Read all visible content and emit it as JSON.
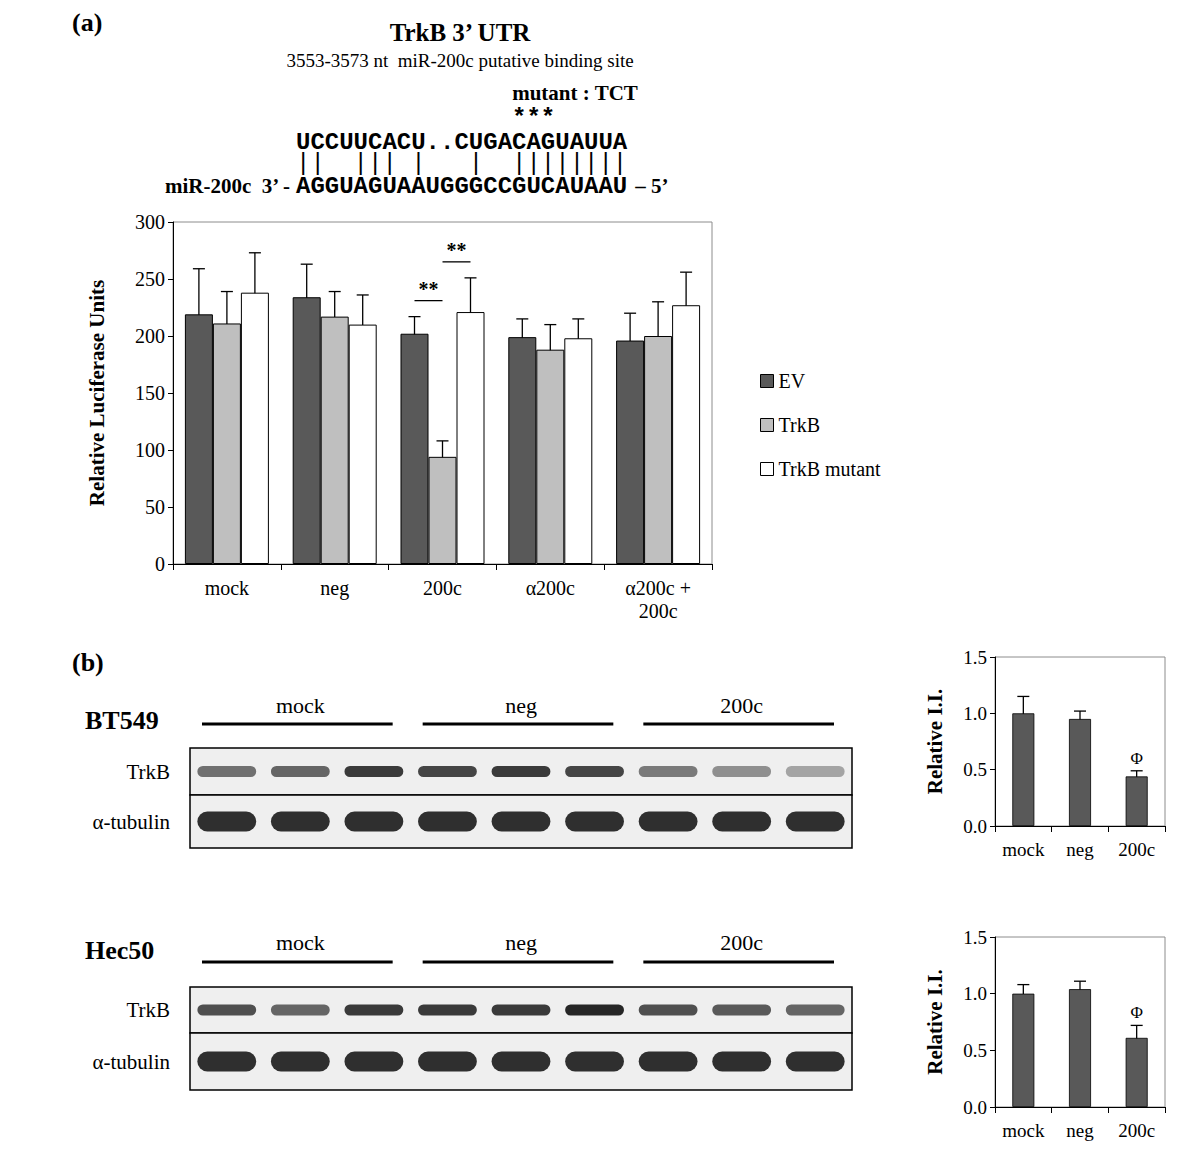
{
  "chart_data": [
    {
      "type": "bar",
      "panel": "(a)",
      "title": "TrkB 3’ UTR",
      "subtitle": "3553-3573 nt  miR-200c putative binding site",
      "alignment": {
        "mutant": "mutant : TCT",
        "mutated_marks": "***",
        "target": "UCCUUCACU..CUGACAGUAUUA",
        "pairing": "||  ||| |   |  ||||||||",
        "mirna_prefix": "miR-200c  3’ -",
        "mirna": "AGGUAGUAAUGGGCCGUCAUAAU",
        "mirna_suffix": "– 5’"
      },
      "ylabel": "Relative Luciferase Units",
      "categories": [
        "mock",
        "neg",
        "200c",
        "α200c",
        "α200c +\n200c"
      ],
      "series": [
        {
          "name": "EV",
          "color": "#595959",
          "values": [
            219,
            234,
            202,
            199,
            196
          ],
          "errors": [
            40,
            29,
            15,
            16,
            24
          ]
        },
        {
          "name": "TrkB",
          "color": "#bfbfbf",
          "values": [
            211,
            217,
            94,
            188,
            200
          ],
          "errors": [
            28,
            22,
            14,
            22,
            30
          ]
        },
        {
          "name": "TrkB mutant",
          "color": "#ffffff",
          "values": [
            238,
            210,
            221,
            198,
            227
          ],
          "errors": [
            35,
            26,
            30,
            17,
            29
          ]
        }
      ],
      "significance": [
        {
          "category": "200c",
          "between": [
            "EV",
            "TrkB"
          ],
          "label": "**"
        },
        {
          "category": "200c",
          "between": [
            "TrkB",
            "TrkB mutant"
          ],
          "label": "**"
        }
      ],
      "ylim": [
        0,
        300
      ],
      "yticks": [
        0,
        50,
        100,
        150,
        200,
        250,
        300
      ],
      "grid": false,
      "legend": "right"
    },
    {
      "type": "bar",
      "panel": "(b)",
      "ylabel": "Relative I.I.",
      "categories": [
        "mock",
        "neg",
        "200c"
      ],
      "color": "#595959",
      "values": [
        1.0,
        0.95,
        0.44
      ],
      "errors": [
        0.15,
        0.07,
        0.05
      ],
      "significance": [
        {
          "category": "200c",
          "label": "Φ"
        }
      ],
      "ylim": [
        0,
        1.5
      ],
      "yticks": [
        {
          "value": 0,
          "label": "0.0"
        },
        {
          "value": 0.5,
          "label": "0.5"
        },
        {
          "value": 1,
          "label": "1.0"
        },
        {
          "value": 1.5,
          "label": "1.5"
        }
      ],
      "grid": false
    },
    {
      "type": "bar",
      "ylabel": "Relative I.I.",
      "categories": [
        "mock",
        "neg",
        "200c"
      ],
      "color": "#595959",
      "values": [
        1.0,
        1.04,
        0.61
      ],
      "errors": [
        0.08,
        0.07,
        0.11
      ],
      "significance": [
        {
          "category": "200c",
          "label": "Φ"
        }
      ],
      "ylim": [
        0,
        1.5
      ],
      "yticks": [
        {
          "value": 0,
          "label": "0.0"
        },
        {
          "value": 0.5,
          "label": "0.5"
        },
        {
          "value": 1,
          "label": "1.0"
        },
        {
          "value": 1.5,
          "label": "1.5"
        }
      ],
      "grid": false
    }
  ],
  "blots": [
    {
      "cell_line": "BT549",
      "groups": [
        "mock",
        "neg",
        "200c"
      ],
      "lanes_per_group": 3,
      "rows": [
        "TrkB",
        "α-tubulin"
      ]
    },
    {
      "cell_line": "Hec50",
      "groups": [
        "mock",
        "neg",
        "200c"
      ],
      "lanes_per_group": 3,
      "rows": [
        "TrkB",
        "α-tubulin"
      ]
    }
  ]
}
